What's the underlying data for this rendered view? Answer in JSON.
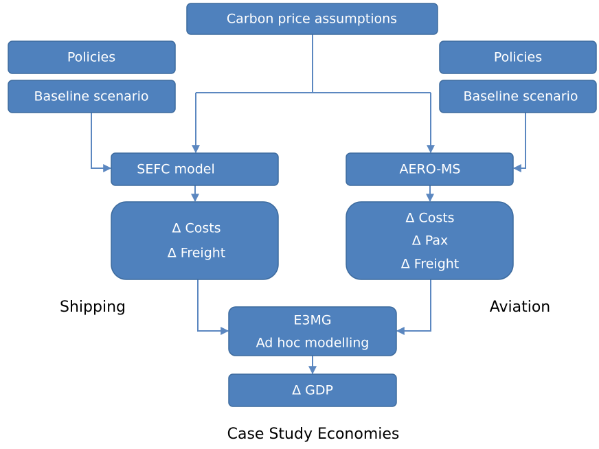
{
  "nodes": [
    {
      "label": "Carbon price assumptions"
    },
    {
      "label": "Policies"
    },
    {
      "label": "Baseline scenario"
    },
    {
      "label": "Policies"
    },
    {
      "label": "Baseline scenario"
    },
    {
      "label": "SEFC model"
    },
    {
      "label": "AERO-MS"
    },
    {
      "lines": [
        "Δ Costs",
        "Δ Freight"
      ]
    },
    {
      "lines": [
        "Δ Costs",
        "Δ Pax",
        "Δ Freight"
      ]
    },
    {
      "lines": [
        "E3MG",
        "Ad hoc modelling"
      ]
    },
    {
      "label": "Δ GDP"
    }
  ],
  "labels": [
    "Shipping",
    "Aviation",
    "Case Study Economies"
  ]
}
